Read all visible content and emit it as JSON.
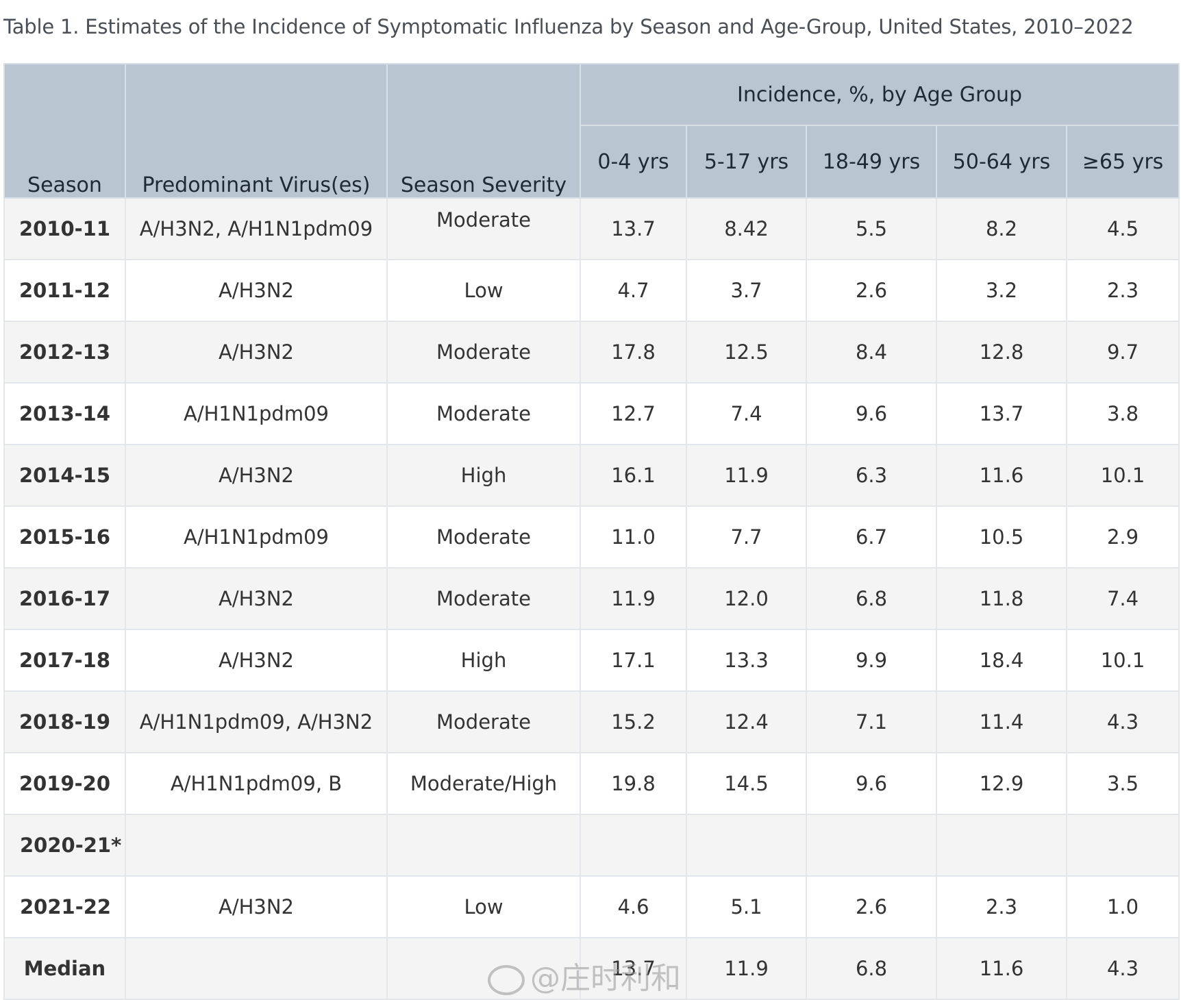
{
  "caption": "Table 1. Estimates of the Incidence of Symptomatic Influenza by Season and Age-Group, United States, 2010–2022",
  "headers": {
    "season": "Season",
    "virus": "Predominant Virus(es)",
    "severity": "Season Severity",
    "group": "Incidence, %, by Age Group",
    "ages": [
      "0-4 yrs",
      "5-17 yrs",
      "18-49 yrs",
      "50-64 yrs",
      "≥65 yrs"
    ]
  },
  "rows": [
    {
      "season": "2010-11",
      "virus": "A/H3N2, A/H1N1pdm09",
      "severity": "Moderate",
      "values": [
        "13.7",
        "8.42",
        "5.5",
        "8.2",
        "4.5"
      ]
    },
    {
      "season": "2011-12",
      "virus": "A/H3N2",
      "severity": "Low",
      "values": [
        "4.7",
        "3.7",
        "2.6",
        "3.2",
        "2.3"
      ]
    },
    {
      "season": "2012-13",
      "virus": "A/H3N2",
      "severity": "Moderate",
      "values": [
        "17.8",
        "12.5",
        "8.4",
        "12.8",
        "9.7"
      ]
    },
    {
      "season": "2013-14",
      "virus": "A/H1N1pdm09",
      "severity": "Moderate",
      "values": [
        "12.7",
        "7.4",
        "9.6",
        "13.7",
        "3.8"
      ]
    },
    {
      "season": "2014-15",
      "virus": "A/H3N2",
      "severity": "High",
      "values": [
        "16.1",
        "11.9",
        "6.3",
        "11.6",
        "10.1"
      ]
    },
    {
      "season": "2015-16",
      "virus": "A/H1N1pdm09",
      "severity": "Moderate",
      "values": [
        "11.0",
        "7.7",
        "6.7",
        "10.5",
        "2.9"
      ]
    },
    {
      "season": "2016-17",
      "virus": "A/H3N2",
      "severity": "Moderate",
      "values": [
        "11.9",
        "12.0",
        "6.8",
        "11.8",
        "7.4"
      ]
    },
    {
      "season": "2017-18",
      "virus": "A/H3N2",
      "severity": "High",
      "values": [
        "17.1",
        "13.3",
        "9.9",
        "18.4",
        "10.1"
      ]
    },
    {
      "season": "2018-19",
      "virus": "A/H1N1pdm09, A/H3N2",
      "severity": "Moderate",
      "values": [
        "15.2",
        "12.4",
        "7.1",
        "11.4",
        "4.3"
      ]
    },
    {
      "season": "2019-20",
      "virus": "A/H1N1pdm09, B",
      "severity": "Moderate/High",
      "values": [
        "19.8",
        "14.5",
        "9.6",
        "12.9",
        "3.5"
      ]
    },
    {
      "season": "2020-21*",
      "virus": "",
      "severity": "",
      "values": [
        "",
        "",
        "",
        "",
        ""
      ]
    },
    {
      "season": "2021-22",
      "virus": "A/H3N2",
      "severity": "Low",
      "values": [
        "4.6",
        "5.1",
        "2.6",
        "2.3",
        "1.0"
      ]
    },
    {
      "season": "Median",
      "virus": "",
      "severity": "",
      "values": [
        "13.7",
        "11.9",
        "6.8",
        "11.6",
        "4.3"
      ]
    }
  ],
  "watermark": "@庄时利和"
}
